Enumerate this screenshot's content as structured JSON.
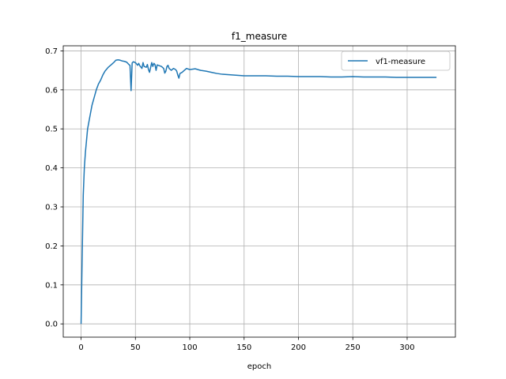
{
  "chart_data": {
    "type": "line",
    "title": "f1_measure",
    "xlabel": "epoch",
    "ylabel": "",
    "xlim": [
      -16.4,
      344.4
    ],
    "ylim": [
      -0.034,
      0.713
    ],
    "xticks": [
      0,
      50,
      100,
      150,
      200,
      250,
      300
    ],
    "yticks": [
      0.0,
      0.1,
      0.2,
      0.3,
      0.4,
      0.5,
      0.6,
      0.7
    ],
    "ytick_labels": [
      "0.0",
      "0.1",
      "0.2",
      "0.3",
      "0.4",
      "0.5",
      "0.6",
      "0.7"
    ],
    "grid": true,
    "legend_position": "upper right",
    "series": [
      {
        "name": "vf1-measure",
        "color": "#1f77b4",
        "points": [
          [
            0,
            0.0
          ],
          [
            1,
            0.17
          ],
          [
            2,
            0.33
          ],
          [
            3,
            0.4
          ],
          [
            4,
            0.44
          ],
          [
            5,
            0.47
          ],
          [
            6,
            0.5
          ],
          [
            8,
            0.53
          ],
          [
            10,
            0.56
          ],
          [
            12,
            0.58
          ],
          [
            14,
            0.6
          ],
          [
            16,
            0.615
          ],
          [
            18,
            0.625
          ],
          [
            20,
            0.638
          ],
          [
            22,
            0.648
          ],
          [
            25,
            0.658
          ],
          [
            28,
            0.665
          ],
          [
            30,
            0.67
          ],
          [
            32,
            0.676
          ],
          [
            34,
            0.677
          ],
          [
            36,
            0.676
          ],
          [
            38,
            0.674
          ],
          [
            40,
            0.673
          ],
          [
            42,
            0.671
          ],
          [
            44,
            0.665
          ],
          [
            45,
            0.663
          ],
          [
            46,
            0.598
          ],
          [
            47,
            0.669
          ],
          [
            48,
            0.672
          ],
          [
            50,
            0.67
          ],
          [
            52,
            0.663
          ],
          [
            53,
            0.668
          ],
          [
            54,
            0.662
          ],
          [
            56,
            0.655
          ],
          [
            57,
            0.67
          ],
          [
            58,
            0.66
          ],
          [
            60,
            0.658
          ],
          [
            61,
            0.665
          ],
          [
            62,
            0.652
          ],
          [
            63,
            0.645
          ],
          [
            65,
            0.67
          ],
          [
            66,
            0.66
          ],
          [
            67,
            0.668
          ],
          [
            68,
            0.665
          ],
          [
            69,
            0.65
          ],
          [
            70,
            0.664
          ],
          [
            72,
            0.662
          ],
          [
            74,
            0.66
          ],
          [
            76,
            0.655
          ],
          [
            77,
            0.643
          ],
          [
            78,
            0.648
          ],
          [
            79,
            0.66
          ],
          [
            80,
            0.663
          ],
          [
            81,
            0.655
          ],
          [
            83,
            0.65
          ],
          [
            85,
            0.655
          ],
          [
            87,
            0.652
          ],
          [
            88,
            0.648
          ],
          [
            89,
            0.638
          ],
          [
            90,
            0.63
          ],
          [
            91,
            0.642
          ],
          [
            93,
            0.645
          ],
          [
            95,
            0.65
          ],
          [
            97,
            0.655
          ],
          [
            100,
            0.652
          ],
          [
            105,
            0.654
          ],
          [
            110,
            0.65
          ],
          [
            115,
            0.648
          ],
          [
            120,
            0.645
          ],
          [
            125,
            0.642
          ],
          [
            130,
            0.64
          ],
          [
            140,
            0.638
          ],
          [
            150,
            0.636
          ],
          [
            160,
            0.636
          ],
          [
            170,
            0.636
          ],
          [
            180,
            0.635
          ],
          [
            190,
            0.635
          ],
          [
            200,
            0.634
          ],
          [
            210,
            0.634
          ],
          [
            220,
            0.634
          ],
          [
            230,
            0.633
          ],
          [
            240,
            0.633
          ],
          [
            250,
            0.634
          ],
          [
            260,
            0.633
          ],
          [
            270,
            0.633
          ],
          [
            280,
            0.633
          ],
          [
            290,
            0.632
          ],
          [
            300,
            0.632
          ],
          [
            310,
            0.632
          ],
          [
            320,
            0.632
          ],
          [
            327,
            0.632
          ]
        ]
      }
    ]
  }
}
